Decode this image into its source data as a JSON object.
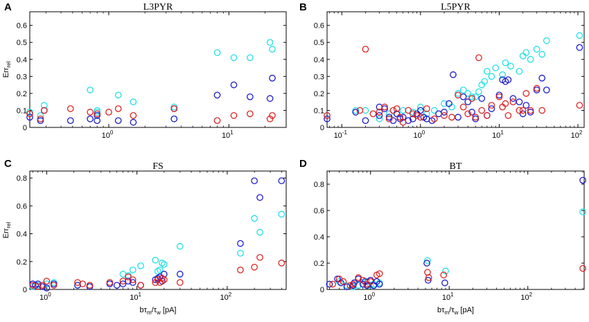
{
  "colors": {
    "cyan": "#22e0e6",
    "blue": "#1a1acc",
    "red": "#dd2222"
  },
  "chart_data": [
    {
      "panel": "A",
      "title": "L3PYR",
      "type": "scatter",
      "xscale": "log",
      "xlim": [
        0.22,
        30
      ],
      "ylim": [
        0,
        0.68
      ],
      "xticks": [
        {
          "v": 1,
          "base": "10",
          "exp": "0"
        },
        {
          "v": 10,
          "base": "10",
          "exp": "1"
        }
      ],
      "yticks": [
        "0",
        "0.1",
        "0.2",
        "0.3",
        "0.4",
        "0.5",
        "0.6"
      ],
      "ylabel": "Err",
      "ylabel_sub": "rel",
      "xlabel": "",
      "series": [
        {
          "name": "cyan",
          "x": [
            0.22,
            0.27,
            0.29,
            0.7,
            0.8,
            0.8,
            1.2,
            1.6,
            3.5,
            8,
            11,
            15,
            22,
            23
          ],
          "y": [
            0.09,
            0.07,
            0.13,
            0.22,
            0.1,
            0.09,
            0.19,
            0.15,
            0.12,
            0.44,
            0.41,
            0.41,
            0.5,
            0.46
          ]
        },
        {
          "name": "blue",
          "x": [
            0.22,
            0.27,
            0.29,
            0.48,
            0.7,
            0.8,
            0.8,
            1.2,
            1.6,
            3.5,
            3.5,
            8,
            11,
            15,
            22,
            23
          ],
          "y": [
            0.06,
            0.04,
            0.1,
            0.04,
            0.05,
            0.07,
            0.04,
            0.04,
            0.03,
            0.11,
            0.05,
            0.19,
            0.25,
            0.18,
            0.17,
            0.29
          ]
        },
        {
          "name": "red",
          "x": [
            0.22,
            0.27,
            0.29,
            0.48,
            0.7,
            0.8,
            1.0,
            1.2,
            1.6,
            3.5,
            8,
            11,
            15,
            22,
            23
          ],
          "y": [
            0.08,
            0.05,
            0.1,
            0.11,
            0.09,
            0.08,
            0.09,
            0.11,
            0.07,
            0.11,
            0.04,
            0.07,
            0.08,
            0.05,
            0.07
          ]
        }
      ]
    },
    {
      "panel": "B",
      "title": "L5PYR",
      "type": "scatter",
      "xscale": "log",
      "xlim": [
        0.065,
        120
      ],
      "ylim": [
        0,
        0.68
      ],
      "xticks": [
        {
          "v": 0.1,
          "base": "10",
          "exp": "-1"
        },
        {
          "v": 1,
          "base": "10",
          "exp": "0"
        },
        {
          "v": 10,
          "base": "10",
          "exp": "1"
        },
        {
          "v": 100,
          "base": "10",
          "exp": "2"
        }
      ],
      "yticks": [
        "0",
        "0.1",
        "0.2",
        "0.3",
        "0.4",
        "0.5",
        "0.6"
      ],
      "ylabel": "",
      "ylabel_sub": "",
      "xlabel": "",
      "series": [
        {
          "name": "cyan",
          "x": [
            0.065,
            0.15,
            0.2,
            0.3,
            0.4,
            0.5,
            0.6,
            0.8,
            1.0,
            1.2,
            1.5,
            2,
            2.5,
            3,
            3.5,
            4,
            4.5,
            5,
            5.5,
            6,
            6.5,
            7,
            8,
            9,
            11,
            12,
            14,
            18,
            20,
            22,
            25,
            30,
            35,
            40,
            105
          ],
          "y": [
            0.07,
            0.1,
            0.1,
            0.05,
            0.08,
            0.08,
            0.1,
            0.09,
            0.12,
            0.08,
            0.1,
            0.14,
            0.12,
            0.2,
            0.22,
            0.2,
            0.18,
            0.18,
            0.21,
            0.25,
            0.27,
            0.33,
            0.3,
            0.35,
            0.31,
            0.38,
            0.36,
            0.33,
            0.42,
            0.44,
            0.4,
            0.46,
            0.43,
            0.51,
            0.54
          ]
        },
        {
          "name": "blue",
          "x": [
            0.065,
            0.15,
            0.2,
            0.3,
            0.3,
            0.35,
            0.4,
            0.45,
            0.5,
            0.55,
            0.6,
            0.7,
            0.8,
            0.9,
            1.0,
            1.1,
            1.2,
            1.4,
            1.7,
            2,
            2.3,
            2.6,
            3,
            3.5,
            4,
            4.5,
            5,
            6,
            7,
            8,
            10,
            11,
            12,
            13,
            15,
            18,
            20,
            22,
            25,
            30,
            35,
            40,
            105
          ],
          "y": [
            0.05,
            0.09,
            0.04,
            0.12,
            0.07,
            0.11,
            0.06,
            0.04,
            0.08,
            0.05,
            0.06,
            0.04,
            0.05,
            0.08,
            0.1,
            0.06,
            0.05,
            0.04,
            0.08,
            0.09,
            0.14,
            0.31,
            0.06,
            0.18,
            0.15,
            0.09,
            0.05,
            0.17,
            0.07,
            0.11,
            0.19,
            0.28,
            0.27,
            0.28,
            0.17,
            0.15,
            0.08,
            0.13,
            0.09,
            0.22,
            0.29,
            0.22,
            0.47
          ]
        },
        {
          "name": "red",
          "x": [
            0.065,
            0.17,
            0.2,
            0.25,
            0.3,
            0.35,
            0.4,
            0.45,
            0.5,
            0.55,
            0.6,
            0.7,
            0.8,
            0.9,
            1.0,
            1.2,
            1.5,
            2,
            2.5,
            3,
            3.5,
            4,
            4.5,
            5,
            5.5,
            6,
            7,
            8,
            10,
            11,
            12,
            13,
            15,
            18,
            20,
            22,
            25,
            30,
            35,
            105
          ],
          "y": [
            0.07,
            0.1,
            0.46,
            0.08,
            0.09,
            0.12,
            0.05,
            0.1,
            0.11,
            0.06,
            0.03,
            0.1,
            0.08,
            0.07,
            0.06,
            0.11,
            0.05,
            0.07,
            0.06,
            0.19,
            0.12,
            0.08,
            0.17,
            0.06,
            0.41,
            0.1,
            0.07,
            0.13,
            0.18,
            0.12,
            0.14,
            0.07,
            0.15,
            0.1,
            0.1,
            0.2,
            0.1,
            0.23,
            0.1,
            0.13
          ]
        }
      ]
    },
    {
      "panel": "C",
      "title": "FS",
      "type": "scatter",
      "xscale": "log",
      "xlim": [
        0.65,
        450
      ],
      "ylim": [
        0,
        0.85
      ],
      "xticks": [
        {
          "v": 1,
          "base": "10",
          "exp": "0"
        },
        {
          "v": 10,
          "base": "10",
          "exp": "1"
        },
        {
          "v": 100,
          "base": "10",
          "exp": "2"
        }
      ],
      "yticks": [
        "0",
        "0.2",
        "0.4",
        "0.6",
        "0.8"
      ],
      "ylabel": "Err",
      "ylabel_sub": "rel",
      "xlabel": "bτ",
      "xlabel_sub1": "m",
      "xlabel_mid": "/τ",
      "xlabel_sub2": "w",
      "xlabel_unit": " [pA]",
      "series": [
        {
          "name": "cyan",
          "x": [
            0.7,
            0.8,
            1.0,
            1.2,
            2.2,
            3,
            5,
            7,
            8,
            9,
            11,
            16,
            17,
            18,
            19,
            20,
            30,
            140,
            200,
            230,
            400
          ],
          "y": [
            0.02,
            0.03,
            0.04,
            0.05,
            0.03,
            0.02,
            0.05,
            0.11,
            0.1,
            0.14,
            0.17,
            0.21,
            0.13,
            0.14,
            0.19,
            0.18,
            0.31,
            0.26,
            0.51,
            0.41,
            0.54
          ]
        },
        {
          "name": "blue",
          "x": [
            0.7,
            0.75,
            0.8,
            0.9,
            1.0,
            1.2,
            2.2,
            3,
            5,
            6,
            7,
            8,
            9,
            11,
            16,
            17,
            18,
            19,
            20,
            30,
            140,
            200,
            230,
            400
          ],
          "y": [
            0.04,
            0.03,
            0.04,
            0.02,
            0.01,
            0.04,
            0.03,
            0.02,
            0.04,
            0.03,
            0.04,
            0.06,
            0.05,
            0.03,
            0.07,
            0.08,
            0.09,
            0.06,
            0.11,
            0.11,
            0.33,
            0.78,
            0.66,
            0.78
          ]
        },
        {
          "name": "red",
          "x": [
            0.7,
            0.8,
            0.9,
            1.0,
            1.2,
            2.2,
            2.5,
            3,
            5,
            7,
            8,
            9,
            11,
            16,
            17,
            18,
            19,
            20,
            30,
            140,
            200,
            230,
            400
          ],
          "y": [
            0.03,
            0.02,
            0.03,
            0.06,
            0.03,
            0.05,
            0.04,
            0.03,
            0.05,
            0.06,
            0.09,
            0.07,
            0.03,
            0.05,
            0.07,
            0.05,
            0.08,
            0.07,
            0.05,
            0.14,
            0.16,
            0.23,
            0.19
          ]
        }
      ]
    },
    {
      "panel": "D",
      "title": "BT",
      "type": "scatter",
      "xscale": "log",
      "xlim": [
        0.28,
        520
      ],
      "ylim": [
        0,
        0.9
      ],
      "xticks": [
        {
          "v": 1,
          "base": "10",
          "exp": "0"
        },
        {
          "v": 10,
          "base": "10",
          "exp": "1"
        },
        {
          "v": 100,
          "base": "10",
          "exp": "2"
        }
      ],
      "yticks": [
        "0",
        "0.2",
        "0.4",
        "0.6",
        "0.8"
      ],
      "ylabel": "",
      "ylabel_sub": "",
      "xlabel": "bτ",
      "xlabel_sub1": "m",
      "xlabel_mid": "/τ",
      "xlabel_sub2": "w",
      "xlabel_unit": " [pA]",
      "series": [
        {
          "name": "cyan",
          "x": [
            0.3,
            0.4,
            0.5,
            0.6,
            0.7,
            0.8,
            0.9,
            1.0,
            1.1,
            1.3,
            5.3,
            9,
            500
          ],
          "y": [
            0.04,
            0.06,
            0.03,
            0.02,
            0.03,
            0.04,
            0.06,
            0.03,
            0.04,
            0.05,
            0.22,
            0.14,
            0.59
          ]
        },
        {
          "name": "blue",
          "x": [
            0.3,
            0.38,
            0.42,
            0.5,
            0.6,
            0.62,
            0.7,
            0.8,
            0.85,
            0.9,
            1.0,
            1.1,
            1.2,
            1.3,
            5.2,
            5.4,
            8.8,
            500
          ],
          "y": [
            0.04,
            0.08,
            0.05,
            0.02,
            0.03,
            0.05,
            0.08,
            0.04,
            0.06,
            0.03,
            0.07,
            0.03,
            0.06,
            0.04,
            0.2,
            0.07,
            0.05,
            0.83
          ]
        },
        {
          "name": "red",
          "x": [
            0.33,
            0.4,
            0.45,
            0.55,
            0.6,
            0.7,
            0.8,
            0.9,
            1.0,
            1.2,
            1.3,
            5.3,
            5.5,
            8.5,
            500
          ],
          "y": [
            0.04,
            0.08,
            0.06,
            0.03,
            0.04,
            0.09,
            0.07,
            0.04,
            0.06,
            0.11,
            0.12,
            0.13,
            0.09,
            0.11,
            0.16
          ]
        }
      ]
    }
  ]
}
